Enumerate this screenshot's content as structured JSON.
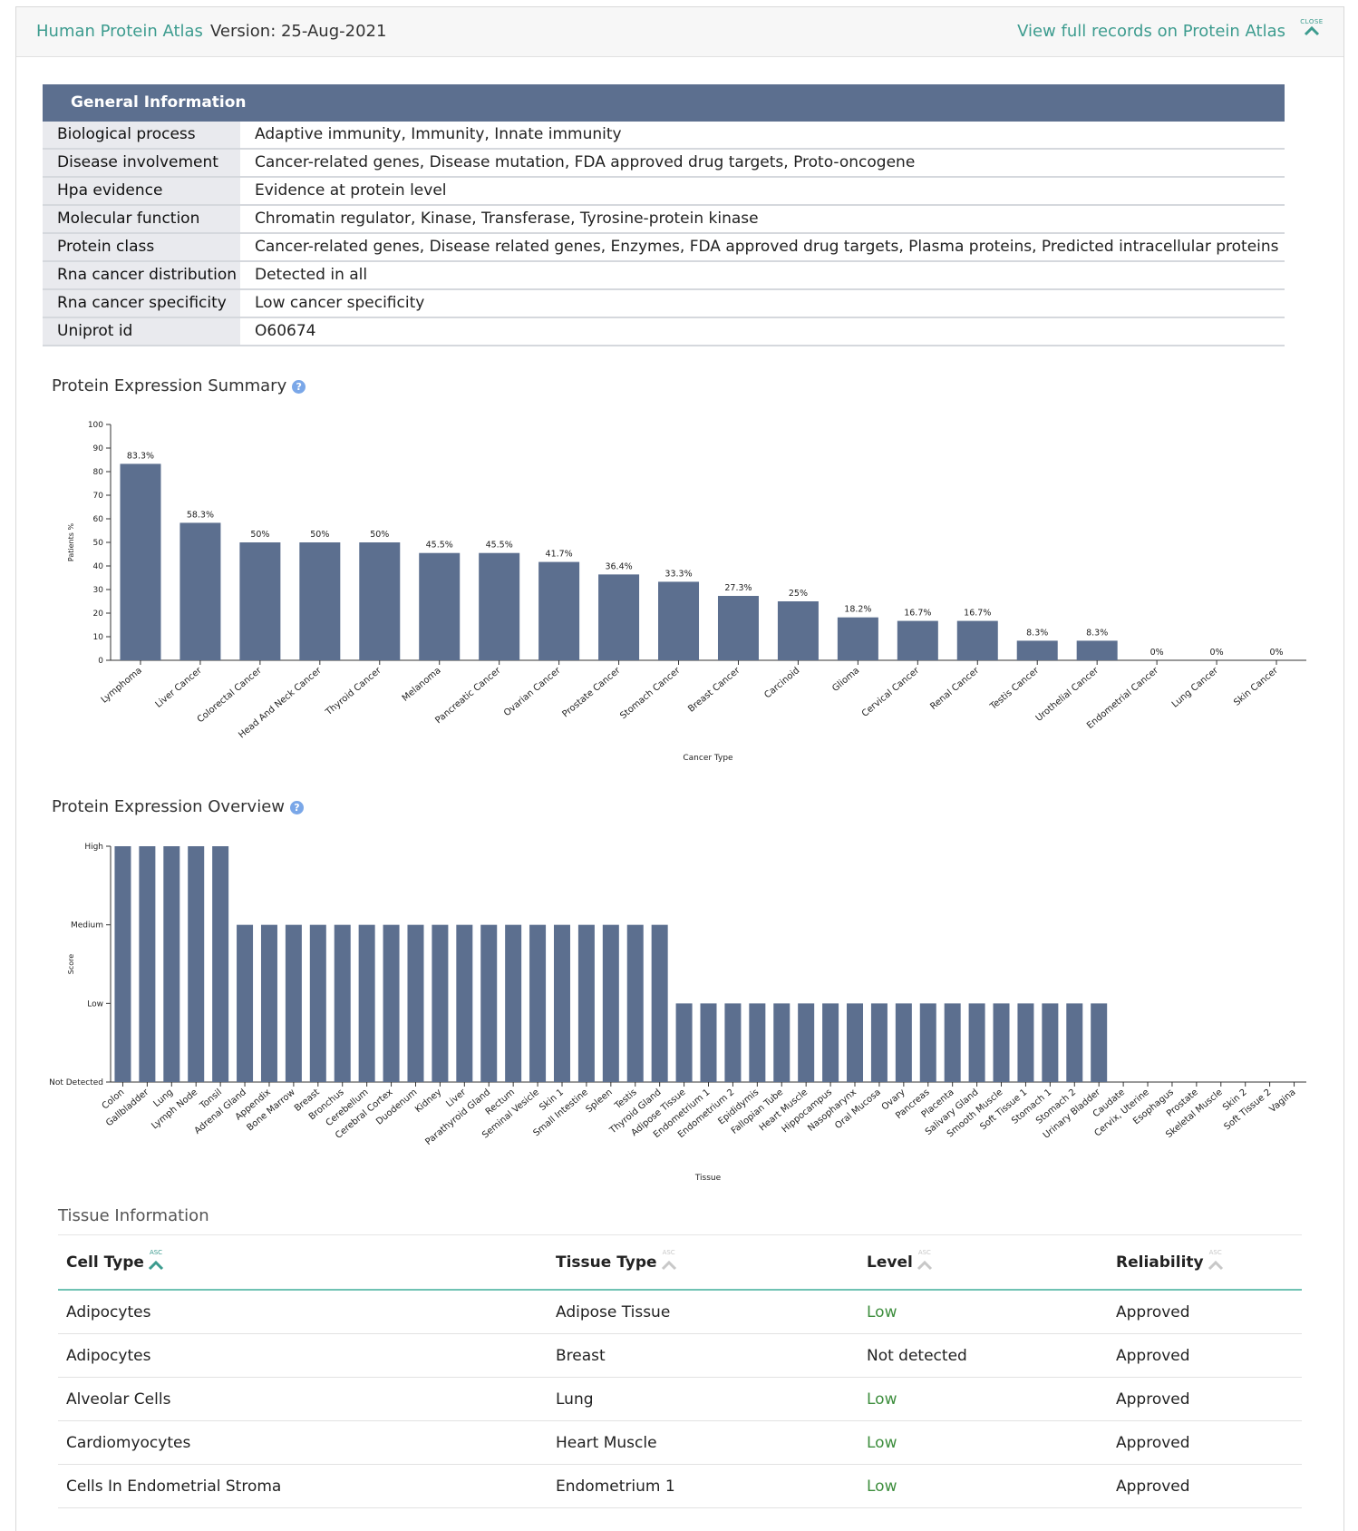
{
  "header": {
    "source_name": "Human Protein Atlas",
    "version_text": "Version: 25-Aug-2021",
    "view_full_link": "View full records on Protein Atlas",
    "close_label": "CLOSE"
  },
  "general_info": {
    "title": "General Information",
    "rows": [
      {
        "key": "Biological process",
        "value": "Adaptive immunity, Immunity, Innate immunity"
      },
      {
        "key": "Disease involvement",
        "value": "Cancer-related genes, Disease mutation, FDA approved drug targets, Proto-oncogene"
      },
      {
        "key": "Hpa evidence",
        "value": "Evidence at protein level"
      },
      {
        "key": "Molecular function",
        "value": "Chromatin regulator, Kinase, Transferase, Tyrosine-protein kinase"
      },
      {
        "key": "Protein class",
        "value": "Cancer-related genes, Disease related genes, Enzymes, FDA approved drug targets, Plasma proteins, Predicted intracellular proteins"
      },
      {
        "key": "Rna cancer distribution",
        "value": "Detected in all"
      },
      {
        "key": "Rna cancer specificity",
        "value": "Low cancer specificity"
      },
      {
        "key": "Uniprot id",
        "value": "O60674"
      }
    ]
  },
  "summary_title": "Protein Expression Summary",
  "overview_title": "Protein Expression Overview",
  "chart_data": [
    {
      "type": "bar",
      "title": "Protein Expression Summary",
      "xlabel": "Cancer Type",
      "ylabel": "Patients %",
      "ylim": [
        0,
        100
      ],
      "yticks": [
        0,
        10,
        20,
        30,
        40,
        50,
        60,
        70,
        80,
        90,
        100
      ],
      "categories": [
        "Lymphoma",
        "Liver Cancer",
        "Colorectal Cancer",
        "Head And Neck Cancer",
        "Thyroid Cancer",
        "Melanoma",
        "Pancreatic Cancer",
        "Ovarian Cancer",
        "Prostate Cancer",
        "Stomach Cancer",
        "Breast Cancer",
        "Carcinoid",
        "Glioma",
        "Cervical Cancer",
        "Renal Cancer",
        "Testis Cancer",
        "Urothelial Cancer",
        "Endometrial Cancer",
        "Lung Cancer",
        "Skin Cancer"
      ],
      "values": [
        83.3,
        58.3,
        50,
        50,
        50,
        45.5,
        45.5,
        41.7,
        36.4,
        33.3,
        27.3,
        25,
        18.2,
        16.7,
        16.7,
        8.3,
        8.3,
        0,
        0,
        0
      ],
      "labels": [
        "83.3%",
        "58.3%",
        "50%",
        "50%",
        "50%",
        "45.5%",
        "45.5%",
        "41.7%",
        "36.4%",
        "33.3%",
        "27.3%",
        "25%",
        "18.2%",
        "16.7%",
        "16.7%",
        "8.3%",
        "8.3%",
        "0%",
        "0%",
        "0%"
      ],
      "bar_color": "#5c6f8f",
      "grid": false
    },
    {
      "type": "bar",
      "title": "Protein Expression Overview",
      "xlabel": "Tissue",
      "ylabel": "Score",
      "yticks": [
        "Not Detected",
        "Low",
        "Medium",
        "High"
      ],
      "categories": [
        "Colon",
        "Gallbladder",
        "Lung",
        "Lymph Node",
        "Tonsil",
        "Adrenal Gland",
        "Appendix",
        "Bone Marrow",
        "Breast",
        "Bronchus",
        "Cerebellum",
        "Cerebral Cortex",
        "Duodenum",
        "Kidney",
        "Liver",
        "Parathyroid Gland",
        "Rectum",
        "Seminal Vesicle",
        "Skin 1",
        "Small Intestine",
        "Spleen",
        "Testis",
        "Thyroid Gland",
        "Adipose Tissue",
        "Endometrium 1",
        "Endometrium 2",
        "Epididymis",
        "Fallopian Tube",
        "Heart Muscle",
        "Hippocampus",
        "Nasopharynx",
        "Oral Mucosa",
        "Ovary",
        "Pancreas",
        "Placenta",
        "Salivary Gland",
        "Smooth Muscle",
        "Soft Tissue 1",
        "Stomach 1",
        "Stomach 2",
        "Urinary Bladder",
        "Caudate",
        "Cervix, Uterine",
        "Esophagus",
        "Prostate",
        "Skeletal Muscle",
        "Skin 2",
        "Soft Tissue 2",
        "Vagina"
      ],
      "values": [
        3,
        3,
        3,
        3,
        3,
        2,
        2,
        2,
        2,
        2,
        2,
        2,
        2,
        2,
        2,
        2,
        2,
        2,
        2,
        2,
        2,
        2,
        2,
        1,
        1,
        1,
        1,
        1,
        1,
        1,
        1,
        1,
        1,
        1,
        1,
        1,
        1,
        1,
        1,
        1,
        1,
        0,
        0,
        0,
        0,
        0,
        0,
        0,
        0
      ],
      "bar_color": "#5c6f8f",
      "grid": false
    }
  ],
  "tissue_info": {
    "title": "Tissue Information",
    "sort_label": "ASC",
    "columns": [
      "Cell Type",
      "Tissue Type",
      "Level",
      "Reliability"
    ],
    "rows": [
      {
        "cell": "Adipocytes",
        "tissue": "Adipose Tissue",
        "level": "Low",
        "reliability": "Approved"
      },
      {
        "cell": "Adipocytes",
        "tissue": "Breast",
        "level": "Not detected",
        "reliability": "Approved"
      },
      {
        "cell": "Alveolar Cells",
        "tissue": "Lung",
        "level": "Low",
        "reliability": "Approved"
      },
      {
        "cell": "Cardiomyocytes",
        "tissue": "Heart Muscle",
        "level": "Low",
        "reliability": "Approved"
      },
      {
        "cell": "Cells In Endometrial Stroma",
        "tissue": "Endometrium 1",
        "level": "Low",
        "reliability": "Approved"
      }
    ],
    "accent_color": "#3d9c8f",
    "low_color": "#3e8e3e"
  }
}
